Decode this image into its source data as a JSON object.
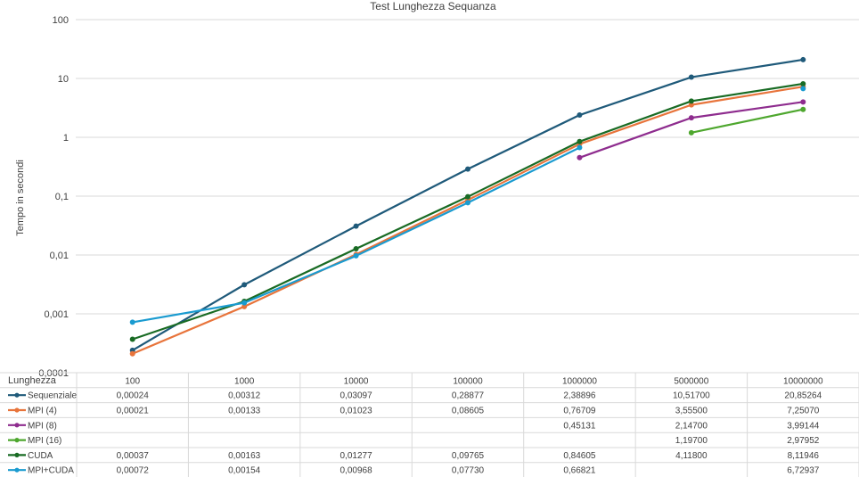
{
  "chart_data": {
    "type": "line",
    "title": "Test Lunghezza Sequanza",
    "ylabel": "Tempo in secondi",
    "xlabel": "Lunghezza",
    "yscale": "log",
    "ylim": [
      0.0001,
      100
    ],
    "y_ticks": [
      "0,0001",
      "0,001",
      "0,01",
      "0,1",
      "1",
      "10",
      "100"
    ],
    "y_tick_values": [
      0.0001,
      0.001,
      0.01,
      0.1,
      1,
      10,
      100
    ],
    "categories": [
      "100",
      "1000",
      "10000",
      "100000",
      "1000000",
      "5000000",
      "10000000"
    ],
    "grid": true,
    "legend": "data-table",
    "series": [
      {
        "name": "Sequenziale",
        "color": "#1f5a7a",
        "values": [
          0.00024,
          0.00312,
          0.03097,
          0.28877,
          2.38896,
          10.517,
          20.85264
        ],
        "labels": [
          "0,00024",
          "0,00312",
          "0,03097",
          "0,28877",
          "2,38896",
          "10,51700",
          "20,85264"
        ]
      },
      {
        "name": "MPI (4)",
        "color": "#e8743b",
        "values": [
          0.00021,
          0.00133,
          0.01023,
          0.08605,
          0.76709,
          3.555,
          7.2507
        ],
        "labels": [
          "0,00021",
          "0,00133",
          "0,01023",
          "0,08605",
          "0,76709",
          "3,55500",
          "7,25070"
        ]
      },
      {
        "name": "MPI (8)",
        "color": "#8e2c8e",
        "values": [
          null,
          null,
          null,
          null,
          0.45131,
          2.147,
          3.99144
        ],
        "labels": [
          "",
          "",
          "",
          "",
          "0,45131",
          "2,14700",
          "3,99144"
        ]
      },
      {
        "name": "MPI (16)",
        "color": "#4ea72e",
        "values": [
          null,
          null,
          null,
          null,
          null,
          1.197,
          2.97952
        ],
        "labels": [
          "",
          "",
          "",
          "",
          "",
          "1,19700",
          "2,97952"
        ]
      },
      {
        "name": "CUDA",
        "color": "#196b24",
        "values": [
          0.00037,
          0.00163,
          0.01277,
          0.09765,
          0.84605,
          4.118,
          8.11946
        ],
        "labels": [
          "0,00037",
          "0,00163",
          "0,01277",
          "0,09765",
          "0,84605",
          "4,11800",
          "8,11946"
        ]
      },
      {
        "name": "MPI+CUDA",
        "color": "#1a9bd0",
        "values": [
          0.00072,
          0.00154,
          0.00968,
          0.0773,
          0.66821,
          null,
          6.72937
        ],
        "labels": [
          "0,00072",
          "0,00154",
          "0,00968",
          "0,07730",
          "0,66821",
          "",
          "6,72937"
        ]
      }
    ]
  }
}
